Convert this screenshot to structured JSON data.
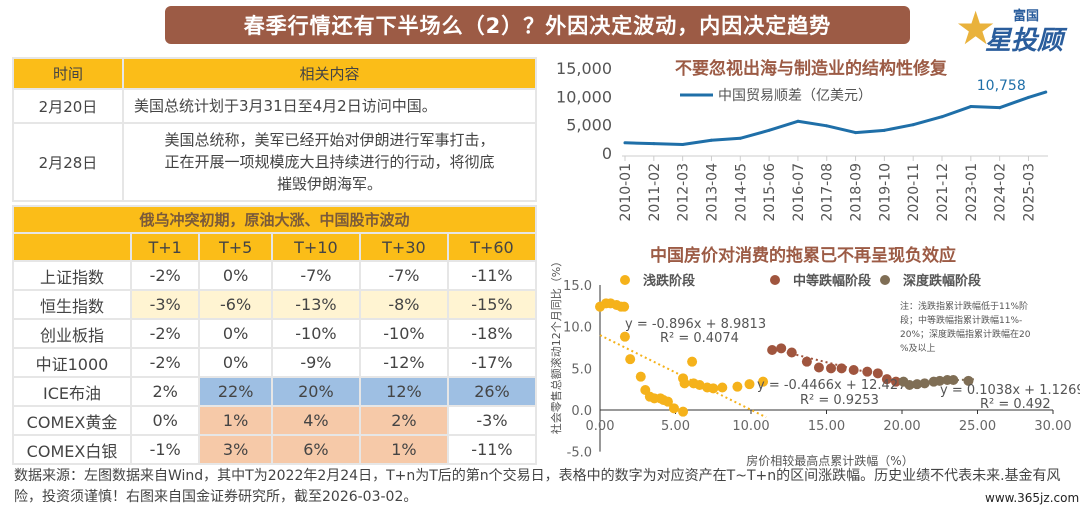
{
  "banner": {
    "title": "春季行情还有下半场么（2）？外因决定波动，内因决定趋势"
  },
  "logo": {
    "line1": "富国",
    "line2": "星投顾"
  },
  "events_table": {
    "headers": [
      "时间",
      "相关内容"
    ],
    "rows": [
      {
        "date": "2月20日",
        "content": "美国总统计划于3月31日至4月2日访问中国。"
      },
      {
        "date": "2月28日",
        "content": "美国总统称，美军已经开始对伊朗进行军事打击，正在开展一项规模庞大且持续进行的行动，将彻底摧毁伊朗海军。"
      }
    ]
  },
  "returns_table": {
    "title": "俄乌冲突初期，原油大涨、中国股市波动",
    "headers": [
      "",
      "T+1",
      "T+5",
      "T+10",
      "T+30",
      "T+60"
    ],
    "rows": [
      {
        "name": "上证指数",
        "values": [
          "-2%",
          "0%",
          "-7%",
          "-7%",
          "-11%"
        ],
        "style": [
          "",
          "",
          "",
          "",
          ""
        ]
      },
      {
        "name": "恒生指数",
        "values": [
          "-3%",
          "-6%",
          "-13%",
          "-8%",
          "-15%"
        ],
        "style": [
          "hl",
          "hl",
          "hl",
          "hl",
          "hl"
        ]
      },
      {
        "name": "创业板指",
        "values": [
          "-2%",
          "0%",
          "-10%",
          "-10%",
          "-18%"
        ],
        "style": [
          "",
          "",
          "",
          "",
          ""
        ]
      },
      {
        "name": "中证1000",
        "values": [
          "-2%",
          "0%",
          "-9%",
          "-12%",
          "-17%"
        ],
        "style": [
          "",
          "",
          "",
          "",
          ""
        ]
      },
      {
        "name": "ICE布油",
        "values": [
          "2%",
          "22%",
          "20%",
          "12%",
          "26%"
        ],
        "style": [
          "",
          "blue",
          "blue",
          "blue",
          "blue"
        ]
      },
      {
        "name": "COMEX黄金",
        "values": [
          "0%",
          "1%",
          "4%",
          "2%",
          "-3%"
        ],
        "style": [
          "",
          "peach",
          "peach",
          "peach",
          ""
        ]
      },
      {
        "name": "COMEX白银",
        "values": [
          "-1%",
          "3%",
          "6%",
          "1%",
          "-11%"
        ],
        "style": [
          "",
          "peach",
          "peach",
          "peach",
          ""
        ]
      }
    ]
  },
  "footnote": "数据来源：左图数据来自Wind，其中T为2022年2月24日，T+n为T后的第n个交易日，表格中的数字为对应资产在T~T+n的区间涨跌幅。历史业绩不代表未来.基金有风险，投资须谨慎！右图来自国金证券研究所，截至2026-03-02。",
  "watermark": "www.365jz.com",
  "colors": {
    "banner": "#9c5b45",
    "header": "#fbbd18",
    "blue": "#9ebfe3",
    "peach": "#f6c9a8",
    "line": "#1f6fa8",
    "shallow": "#f5b21b",
    "medium": "#a0553e",
    "deep": "#7f6e55"
  },
  "chart_data": [
    {
      "type": "line",
      "title": "不要忽视出海与制造业的结构性修复",
      "categories": [
        "2010-01",
        "2011-02",
        "2012-03",
        "2013-04",
        "2014-05",
        "2015-06",
        "2016-07",
        "2017-08",
        "2018-09",
        "2019-10",
        "2020-11",
        "2021-12",
        "2023-01",
        "2024-02",
        "2025-03"
      ],
      "series": [
        {
          "name": "中国贸易顺差（亿美元）",
          "values": [
            1800,
            1650,
            1500,
            2250,
            2600,
            4000,
            5600,
            4800,
            3600,
            4000,
            5000,
            6400,
            8200,
            8000,
            9800
          ],
          "end_value": 10758,
          "end_label": "10,758"
        }
      ],
      "yticks": [
        "0",
        "5,000",
        "10,000",
        "15,000"
      ],
      "ylim": [
        0,
        15000
      ],
      "grid": false,
      "legend": "top"
    },
    {
      "type": "scatter",
      "title": "中国房价对消费的拖累已不再呈现负效应",
      "xlabel": "房价相较最高点累计跌幅（%）",
      "ylabel": "社会零售总额滚动12个月同比（%）",
      "xlim": [
        0,
        30
      ],
      "ylim": [
        -5,
        15
      ],
      "xticks": [
        "0.00",
        "5.00",
        "10.00",
        "15.00",
        "20.00",
        "25.00",
        "30.00"
      ],
      "yticks": [
        "-5.0",
        "0.0",
        "5.0",
        "10.0",
        "15.0"
      ],
      "legend": "top",
      "note": "注：浅跌指累计跌幅低于11%阶段；中等跌幅指累计跌幅11%-20%；深度跌幅指累计跌幅在20%及以上",
      "series": [
        {
          "name": "浅跌阶段",
          "points": [
            [
              0,
              12.4
            ],
            [
              0.4,
              12.8
            ],
            [
              0.7,
              12.8
            ],
            [
              1.1,
              12.6
            ],
            [
              1.4,
              12.4
            ],
            [
              1.6,
              12.4
            ],
            [
              1.65,
              8.8
            ],
            [
              2.0,
              6.1
            ],
            [
              2.7,
              4.0
            ],
            [
              3.0,
              2.4
            ],
            [
              3.3,
              1.6
            ],
            [
              3.6,
              1.4
            ],
            [
              4.0,
              1.4
            ],
            [
              4.2,
              1.2
            ],
            [
              4.5,
              1.0
            ],
            [
              4.9,
              0.2
            ],
            [
              5.5,
              -0.2
            ],
            [
              6.1,
              5.8
            ],
            [
              5.5,
              3.8
            ],
            [
              5.6,
              3.2
            ],
            [
              6.2,
              3.2
            ],
            [
              6.6,
              3.0
            ],
            [
              7.1,
              2.7
            ],
            [
              7.5,
              2.6
            ],
            [
              8.1,
              2.7
            ],
            [
              9.1,
              2.8
            ],
            [
              9.9,
              3.1
            ],
            [
              10.8,
              3.4
            ]
          ],
          "trend": {
            "equation": "y = -0.896x + 8.9813",
            "r2": "R² = 0.4074",
            "slope": -0.896,
            "intercept": 8.9813,
            "range": [
              0,
              11
            ]
          }
        },
        {
          "name": "中等跌幅阶段",
          "points": [
            [
              11.4,
              7.2
            ],
            [
              12.0,
              7.4
            ],
            [
              12.7,
              6.9
            ],
            [
              13.7,
              5.8
            ],
            [
              14.5,
              5.1
            ],
            [
              15.3,
              5.0
            ],
            [
              16.0,
              5.0
            ],
            [
              16.8,
              4.8
            ],
            [
              17.7,
              4.6
            ],
            [
              18.4,
              4.4
            ],
            [
              19.0,
              3.7
            ],
            [
              19.6,
              3.4
            ]
          ],
          "trend": {
            "equation": "y = -0.4466x + 12.427",
            "r2": "R² = 0.9253",
            "slope": -0.4466,
            "intercept": 12.427,
            "range": [
              11.4,
              20
            ]
          }
        },
        {
          "name": "深度跌幅阶段",
          "points": [
            [
              20.1,
              3.4
            ],
            [
              20.5,
              3.0
            ],
            [
              21.0,
              3.1
            ],
            [
              21.5,
              3.2
            ],
            [
              22.1,
              3.4
            ],
            [
              22.5,
              3.5
            ],
            [
              23.0,
              3.6
            ],
            [
              23.4,
              3.6
            ],
            [
              24.4,
              3.5
            ]
          ],
          "trend": {
            "equation": "y = 0.1038x + 1.1269",
            "r2": "R² = 0.492",
            "slope": 0.1038,
            "intercept": 1.1269,
            "range": [
              20,
              24.8
            ]
          }
        }
      ]
    }
  ]
}
